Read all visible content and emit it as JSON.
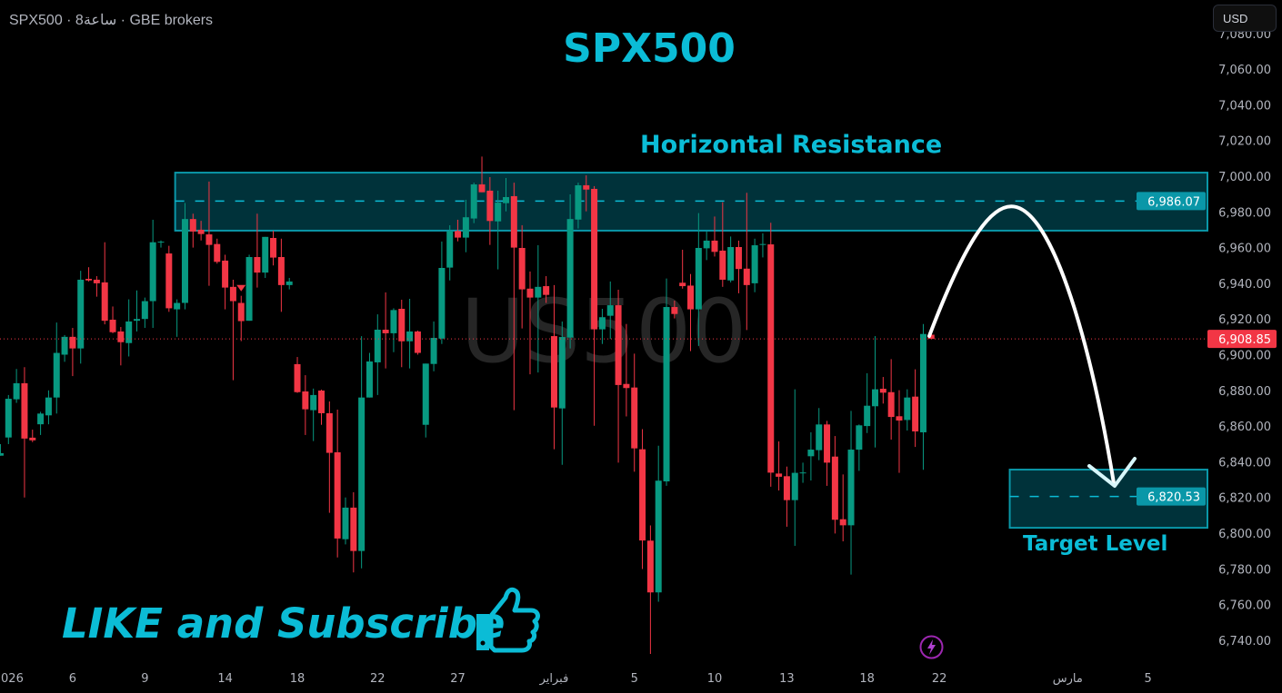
{
  "header": {
    "symbol_line": "SPX500 · 8ساعة · GBE brokers",
    "currency_button": "USD"
  },
  "annotations": {
    "title": "SPX500",
    "resistance_label": "Horizontal Resistance",
    "target_label": "Target Level",
    "cta": "LIKE and Subscribe",
    "watermark": "US500"
  },
  "colors": {
    "up": "#089981",
    "down": "#f23645",
    "accent": "#0bbcd6",
    "zone_fill": "#00323a",
    "zone_border": "#0a97a8",
    "arrow": "#ffffff"
  },
  "icons": [
    "thumbs-up-icon",
    "lightning-icon"
  ],
  "chart_data": {
    "type": "candlestick",
    "timeframe": "8h",
    "ylim": [
      6727,
      7099
    ],
    "y_ticks": [
      7080,
      7060,
      7040,
      7020,
      7000,
      6980,
      6960,
      6940,
      6920,
      6900,
      6880,
      6860,
      6840,
      6820,
      6800,
      6780,
      6760,
      6740
    ],
    "x_ticks": [
      {
        "label": "2026",
        "bar": 1
      },
      {
        "label": "6",
        "bar": 9
      },
      {
        "label": "9",
        "bar": 18
      },
      {
        "label": "14",
        "bar": 28
      },
      {
        "label": "18",
        "bar": 37
      },
      {
        "label": "22",
        "bar": 47
      },
      {
        "label": "27",
        "bar": 57
      },
      {
        "label": "فبراير",
        "bar": 69
      },
      {
        "label": "5",
        "bar": 79
      },
      {
        "label": "10",
        "bar": 89
      },
      {
        "label": "13",
        "bar": 98
      },
      {
        "label": "18",
        "bar": 108
      },
      {
        "label": "22",
        "bar": 117
      },
      {
        "label": "مارس",
        "bar": 133
      },
      {
        "label": "5",
        "bar": 143
      }
    ],
    "last_price": 6908.85,
    "last_price_label": "6,908.85",
    "zones": [
      {
        "name": "resistance",
        "top": 7002,
        "bottom": 6969.5,
        "level": 6986.07,
        "level_label": "6,986.07",
        "start_bar": 22
      },
      {
        "name": "target",
        "top": 6835.6,
        "bottom": 6803,
        "level": 6820.53,
        "level_label": "6,820.53",
        "start_bar": 126
      }
    ],
    "markers": [
      {
        "bar": 30,
        "price": 6937,
        "type": "arrow-down"
      }
    ],
    "ohlc": [
      [
        6843.4,
        6849.9,
        6843.4,
        6844.8
      ],
      [
        6853.6,
        6877.4,
        6849.9,
        6875.3
      ],
      [
        6875,
        6892,
        6873,
        6884
      ],
      [
        6884,
        6893,
        6820,
        6853
      ],
      [
        6853.5,
        6858,
        6851,
        6852
      ],
      [
        6861,
        6868,
        6855,
        6867
      ],
      [
        6866,
        6880,
        6861,
        6876
      ],
      [
        6876,
        6918,
        6867,
        6901
      ],
      [
        6900,
        6911,
        6896,
        6910
      ],
      [
        6910,
        6915,
        6888,
        6903.5
      ],
      [
        6903.5,
        6947,
        6895,
        6942
      ],
      [
        6942.5,
        6949,
        6941,
        6941.6
      ],
      [
        6942,
        6944,
        6932.5,
        6940
      ],
      [
        6940.5,
        6963,
        6917,
        6919
      ],
      [
        6919.6,
        6927,
        6912,
        6912.6
      ],
      [
        6913,
        6915.5,
        6894,
        6907
      ],
      [
        6906.5,
        6931,
        6899,
        6918.6
      ],
      [
        6919,
        6936,
        6913,
        6920
      ],
      [
        6920,
        6932,
        6915,
        6930
      ],
      [
        6930,
        6975.6,
        6915,
        6963
      ],
      [
        6963,
        6964,
        6960,
        6963.3
      ],
      [
        6956.7,
        6961,
        6924,
        6926
      ],
      [
        6925.4,
        6931,
        6910,
        6929
      ],
      [
        6929,
        6985,
        6925.4,
        6976
      ],
      [
        6976,
        6979,
        6960,
        6969
      ],
      [
        6970,
        6975,
        6964,
        6967.6
      ],
      [
        6967.4,
        6997,
        6938.6,
        6961.5
      ],
      [
        6962,
        6965,
        6951,
        6952
      ],
      [
        6952.7,
        6956,
        6925.4,
        6937.6
      ],
      [
        6938,
        6942,
        6885.7,
        6930
      ],
      [
        6929,
        6933,
        6907.6,
        6918.8
      ],
      [
        6919,
        6956,
        6919,
        6954.7
      ],
      [
        6954.7,
        6979,
        6937.6,
        6946
      ],
      [
        6946,
        6966,
        6943,
        6966
      ],
      [
        6965.4,
        6969.5,
        6950,
        6954.4
      ],
      [
        6954.7,
        6965,
        6924,
        6939
      ],
      [
        6939,
        6943,
        6936.6,
        6941
      ],
      [
        6894.7,
        6898.7,
        6878.6,
        6879
      ],
      [
        6879.4,
        6888.5,
        6855,
        6869.4
      ],
      [
        6868.9,
        6881,
        6851.6,
        6877.4
      ],
      [
        6879.9,
        6880.4,
        6860.7,
        6867.2
      ],
      [
        6867.2,
        6873.8,
        6811.4,
        6845
      ],
      [
        6845.3,
        6869.2,
        6786.4,
        6797
      ],
      [
        6796.6,
        6820,
        6793.7,
        6814.3
      ],
      [
        6814.3,
        6822.9,
        6778,
        6790
      ],
      [
        6790,
        6910.4,
        6780.3,
        6876
      ],
      [
        6876,
        6901,
        6876,
        6896.2
      ],
      [
        6895.7,
        6922.6,
        6877.4,
        6914
      ],
      [
        6914,
        6934.9,
        6892.3,
        6912
      ],
      [
        6912,
        6926,
        6901.4,
        6925
      ],
      [
        6925.7,
        6930.8,
        6893,
        6907.5
      ],
      [
        6907.5,
        6931.3,
        6892.3,
        6913
      ],
      [
        6913,
        6913.5,
        6900,
        6901
      ],
      [
        6860.7,
        6895,
        6853.6,
        6895
      ],
      [
        6894.8,
        6918.6,
        6890.7,
        6909.4
      ],
      [
        6909,
        6963.4,
        6906,
        6948.6
      ],
      [
        6948.8,
        6972.5,
        6941.6,
        6969.3
      ],
      [
        6969.3,
        6975.6,
        6963.5,
        6965.6
      ],
      [
        6965.6,
        6986.8,
        6957.4,
        6977
      ],
      [
        6976.3,
        6996.4,
        6973.7,
        6995.4
      ],
      [
        6995.4,
        7011,
        6991,
        6991
      ],
      [
        6991.9,
        6999.5,
        6961.5,
        6974.9
      ],
      [
        6974.7,
        6991.9,
        6947.8,
        6985.2
      ],
      [
        6984.9,
        6999,
        6980.3,
        6988.3
      ],
      [
        6988.8,
        6996.4,
        6868.9,
        6960
      ],
      [
        6959.8,
        6972.5,
        6914.7,
        6936.6
      ],
      [
        6937,
        6946.6,
        6889,
        6932
      ],
      [
        6932,
        6961.3,
        6890,
        6938
      ],
      [
        6938.4,
        6944,
        6929,
        6933.5
      ],
      [
        6910.4,
        6939,
        6847,
        6870.4
      ],
      [
        6869.9,
        6918.6,
        6838.3,
        6909.9
      ],
      [
        6909.6,
        6989.8,
        6903.5,
        6976
      ],
      [
        6975.7,
        6996.4,
        6970.7,
        6994.9
      ],
      [
        6994.9,
        7000.5,
        6980.3,
        6992.5
      ],
      [
        6992.9,
        6994.4,
        6860.2,
        6914.2
      ],
      [
        6914.2,
        6925.7,
        6906,
        6921
      ],
      [
        6921.8,
        6941,
        6908.8,
        6927.7
      ],
      [
        6927.7,
        6936.4,
        6839.5,
        6883
      ],
      [
        6883.6,
        6917.2,
        6865.4,
        6881.3
      ],
      [
        6881.6,
        6900.6,
        6834.4,
        6847.5
      ],
      [
        6847,
        6858.3,
        6779.9,
        6795.9
      ],
      [
        6795.8,
        6804.3,
        6732.3,
        6766.8
      ],
      [
        6766.8,
        6849,
        6761.6,
        6829.4
      ],
      [
        6829,
        6942.7,
        6826.5,
        6926.7
      ],
      [
        6926.7,
        6930.3,
        6920.3,
        6922.8
      ],
      [
        6940.3,
        6958.8,
        6937,
        6938.4
      ],
      [
        6938.7,
        6945.2,
        6902,
        6925.4
      ],
      [
        6925.4,
        6979.3,
        6904.9,
        6959.8
      ],
      [
        6959.6,
        6969,
        6953,
        6963.9
      ],
      [
        6963.9,
        6977.4,
        6955,
        6957.6
      ],
      [
        6958.3,
        6985.4,
        6938,
        6942
      ],
      [
        6941.6,
        6966.2,
        6940.5,
        6960.3
      ],
      [
        6960.3,
        6963.9,
        6934.4,
        6948
      ],
      [
        6948.2,
        6990.7,
        6913.8,
        6939
      ],
      [
        6940,
        6965,
        6935,
        6961.3
      ],
      [
        6961.7,
        6968,
        6954.5,
        6962
      ],
      [
        6961.8,
        6973.9,
        6826,
        6833.9
      ],
      [
        6833.4,
        6851.4,
        6823.9,
        6831.6
      ],
      [
        6831.9,
        6837.3,
        6803.6,
        6818.5
      ],
      [
        6818.5,
        6880.6,
        6792.9,
        6833.8
      ],
      [
        6833.8,
        6839.5,
        6828.2,
        6834
      ],
      [
        6843.1,
        6856.5,
        6829.5,
        6846.8
      ],
      [
        6846.5,
        6870.1,
        6840.9,
        6860.9
      ],
      [
        6860.9,
        6862.9,
        6826.5,
        6839.5
      ],
      [
        6842.9,
        6854.4,
        6799.8,
        6807.5
      ],
      [
        6807.8,
        6832.9,
        6795.4,
        6804.4
      ],
      [
        6804.4,
        6868.5,
        6776.8,
        6846.8
      ],
      [
        6846.8,
        6860.9,
        6834.9,
        6860.4
      ],
      [
        6860,
        6889.6,
        6856.1,
        6871.4
      ],
      [
        6871.1,
        6910.4,
        6848,
        6880.6
      ],
      [
        6880.9,
        6887.5,
        6872.6,
        6878.7
      ],
      [
        6879,
        6897.5,
        6852.4,
        6865.1
      ],
      [
        6865.5,
        6880.1,
        6833.8,
        6863.1
      ],
      [
        6863.4,
        6880.6,
        6857.5,
        6876
      ],
      [
        6876.5,
        6891.8,
        6848.3,
        6857
      ],
      [
        6856.5,
        6917.2,
        6835.5,
        6911.6
      ],
      [
        6911.2,
        6915.5,
        6909.1,
        6908.85
      ]
    ]
  }
}
